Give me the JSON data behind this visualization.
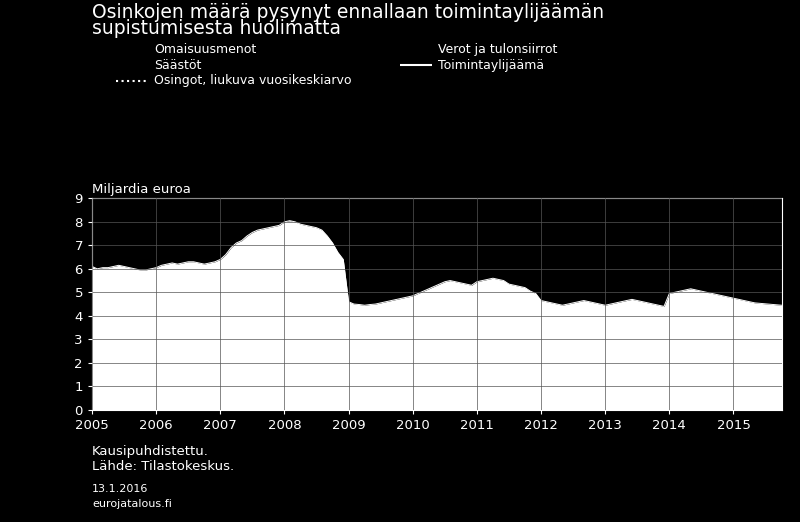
{
  "title_line1": "Osinkojen määrä pysynyt ennallaan toimintaylijäämän",
  "title_line2": "supistumisesta huolimatta",
  "ylabel": "Miljardia euroa",
  "ylim": [
    0,
    9
  ],
  "yticks": [
    0,
    1,
    2,
    3,
    4,
    5,
    6,
    7,
    8,
    9
  ],
  "xtick_labels": [
    "2005",
    "2006",
    "2007",
    "2008",
    "2009",
    "2010",
    "2011",
    "2012",
    "2013",
    "2014",
    "2015"
  ],
  "footnote1": "Kausipuhdistettu.",
  "footnote2": "Lähde: Tilastokeskus.",
  "date_text": "13.1.2016",
  "source_text": "eurojatalous.fi",
  "background_color": "#000000",
  "text_color": "#ffffff",
  "fill_color": "#ffffff",
  "grid_color": "#555555",
  "x": [
    2005.0,
    2005.083,
    2005.167,
    2005.25,
    2005.333,
    2005.417,
    2005.5,
    2005.583,
    2005.667,
    2005.75,
    2005.833,
    2005.917,
    2006.0,
    2006.083,
    2006.167,
    2006.25,
    2006.333,
    2006.417,
    2006.5,
    2006.583,
    2006.667,
    2006.75,
    2006.833,
    2006.917,
    2007.0,
    2007.083,
    2007.167,
    2007.25,
    2007.333,
    2007.417,
    2007.5,
    2007.583,
    2007.667,
    2007.75,
    2007.833,
    2007.917,
    2008.0,
    2008.083,
    2008.167,
    2008.25,
    2008.333,
    2008.417,
    2008.5,
    2008.583,
    2008.667,
    2008.75,
    2008.833,
    2008.917,
    2009.0,
    2009.083,
    2009.167,
    2009.25,
    2009.333,
    2009.417,
    2009.5,
    2009.583,
    2009.667,
    2009.75,
    2009.833,
    2009.917,
    2010.0,
    2010.083,
    2010.167,
    2010.25,
    2010.333,
    2010.417,
    2010.5,
    2010.583,
    2010.667,
    2010.75,
    2010.833,
    2010.917,
    2011.0,
    2011.083,
    2011.167,
    2011.25,
    2011.333,
    2011.417,
    2011.5,
    2011.583,
    2011.667,
    2011.75,
    2011.833,
    2011.917,
    2012.0,
    2012.083,
    2012.167,
    2012.25,
    2012.333,
    2012.417,
    2012.5,
    2012.583,
    2012.667,
    2012.75,
    2012.833,
    2012.917,
    2013.0,
    2013.083,
    2013.167,
    2013.25,
    2013.333,
    2013.417,
    2013.5,
    2013.583,
    2013.667,
    2013.75,
    2013.833,
    2013.917,
    2014.0,
    2014.083,
    2014.167,
    2014.25,
    2014.333,
    2014.417,
    2014.5,
    2014.583,
    2014.667,
    2014.75,
    2014.833,
    2014.917,
    2015.0,
    2015.083,
    2015.167,
    2015.25,
    2015.333,
    2015.417,
    2015.5,
    2015.583,
    2015.667,
    2015.75
  ],
  "y": [
    6.1,
    6.0,
    6.05,
    6.05,
    6.1,
    6.15,
    6.1,
    6.05,
    6.0,
    5.95,
    5.95,
    6.0,
    6.05,
    6.15,
    6.2,
    6.25,
    6.2,
    6.25,
    6.3,
    6.3,
    6.25,
    6.2,
    6.25,
    6.3,
    6.4,
    6.6,
    6.9,
    7.1,
    7.2,
    7.4,
    7.55,
    7.65,
    7.7,
    7.75,
    7.8,
    7.85,
    8.0,
    8.05,
    8.0,
    7.9,
    7.85,
    7.8,
    7.75,
    7.65,
    7.4,
    7.1,
    6.7,
    6.4,
    4.6,
    4.5,
    4.48,
    4.45,
    4.48,
    4.5,
    4.55,
    4.6,
    4.65,
    4.7,
    4.75,
    4.8,
    4.85,
    4.95,
    5.05,
    5.15,
    5.25,
    5.35,
    5.45,
    5.5,
    5.45,
    5.4,
    5.35,
    5.3,
    5.45,
    5.5,
    5.55,
    5.6,
    5.55,
    5.5,
    5.35,
    5.3,
    5.25,
    5.2,
    5.05,
    4.95,
    4.65,
    4.6,
    4.55,
    4.5,
    4.45,
    4.5,
    4.55,
    4.6,
    4.65,
    4.6,
    4.55,
    4.5,
    4.45,
    4.5,
    4.55,
    4.6,
    4.65,
    4.7,
    4.65,
    4.6,
    4.55,
    4.5,
    4.45,
    4.4,
    4.95,
    5.0,
    5.05,
    5.1,
    5.15,
    5.1,
    5.05,
    5.0,
    4.95,
    4.9,
    4.85,
    4.8,
    4.75,
    4.7,
    4.65,
    4.6,
    4.55,
    4.53,
    4.51,
    4.49,
    4.47,
    4.45
  ]
}
